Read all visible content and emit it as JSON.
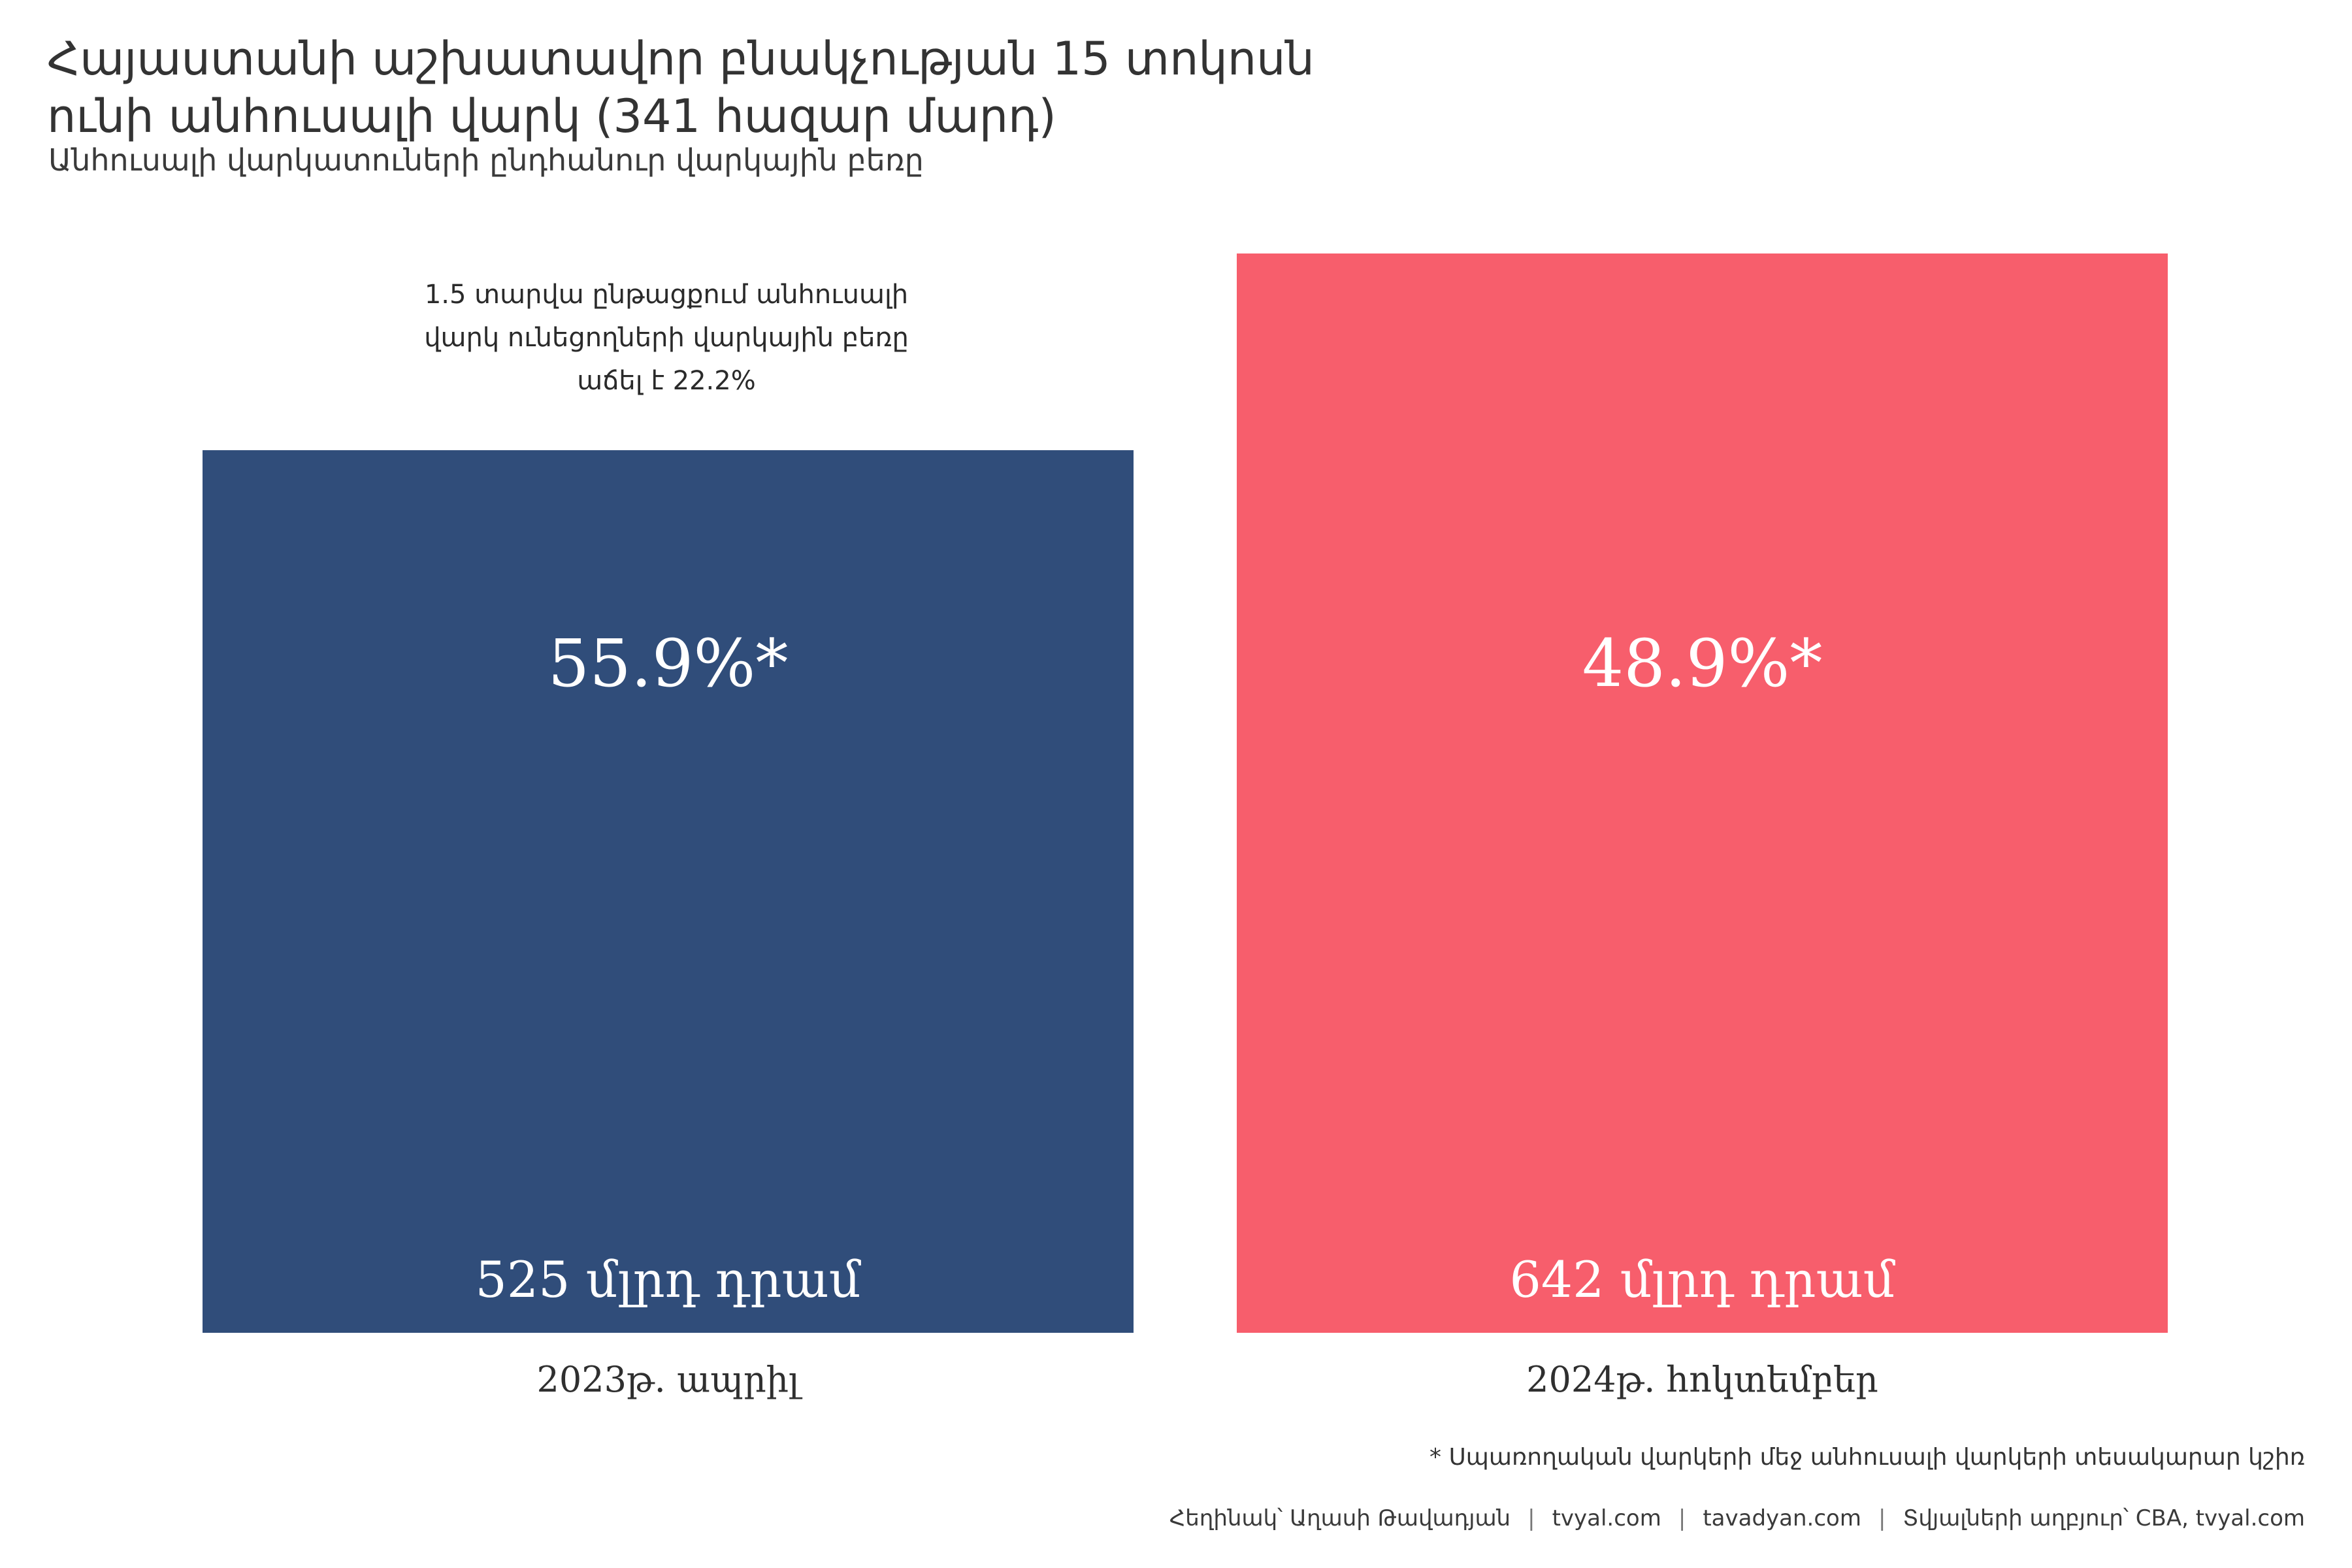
{
  "title": {
    "line1": "Հայաստանի աշխատավոր բնակչության 15 տոկոսն",
    "line2": "ունի անհուսալի վարկ (341 հազար մարդ)"
  },
  "subtitle": "Անհուսալի վարկատուների ընդհանուր վարկային բեռը",
  "annotation": {
    "line1": "1.5 տարվա ընթացքում անհուսալի",
    "line2": "վարկ ունեցողների վարկային բեռը",
    "line3": "աճել է 22.2%"
  },
  "colors": {
    "bar_2023": "#304D7A",
    "bar_2024": "#F75E6C"
  },
  "chart_data": {
    "type": "bar",
    "categories": [
      "2023թ. ապրիլ",
      "2024թ. հոկտեմբեր"
    ],
    "values": [
      525,
      642
    ],
    "value_labels": [
      "525 մլրդ դրամ",
      "642 մլրդ դրամ"
    ],
    "share_labels": [
      "55.9%*",
      "48.9%*"
    ],
    "ylim": [
      0,
      642
    ]
  },
  "footnote": "* Սպառողական վարկերի մեջ անհուսալի վարկերի տեսակարար կշիռ",
  "credits": {
    "author": "Հեղինակ՝ Աղասի Թավադյան",
    "site1": "tvyal.com",
    "site2": "tavadyan.com",
    "source": "Տվյալների աղբյուր՝ CBA, tvyal.com"
  }
}
